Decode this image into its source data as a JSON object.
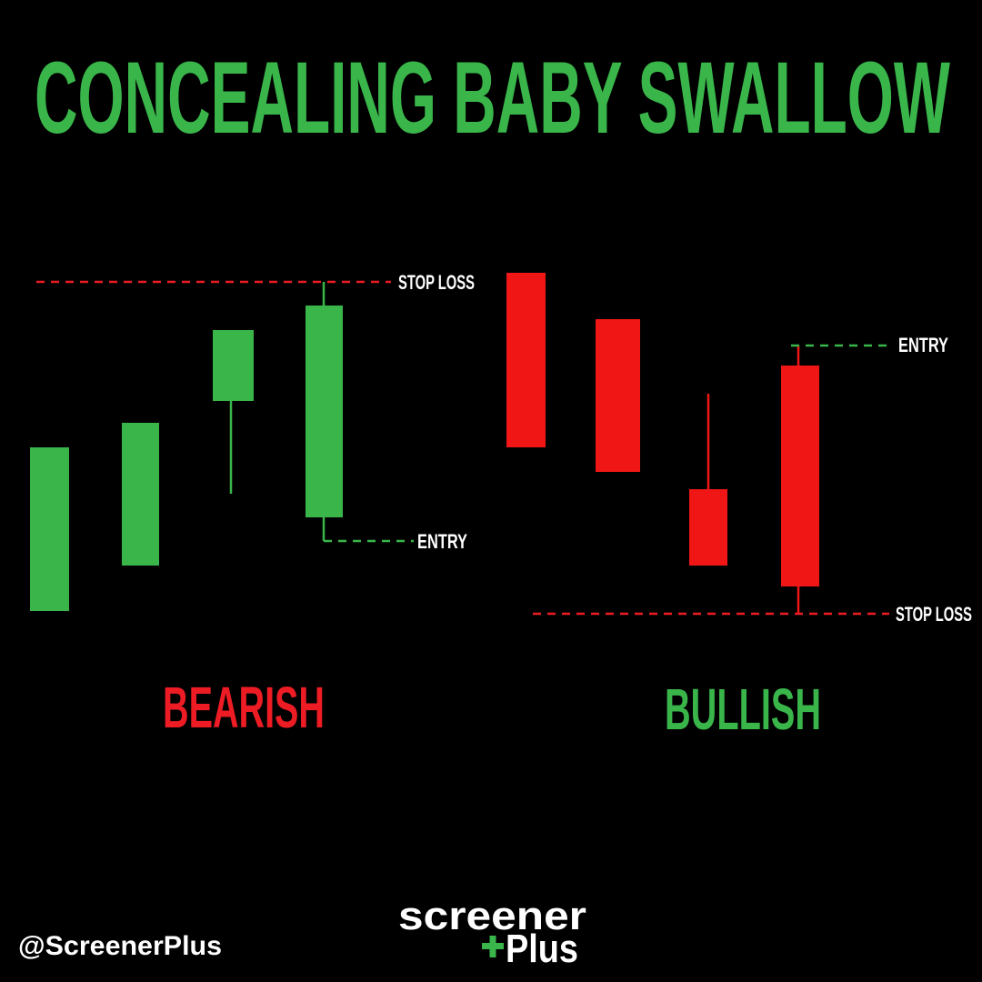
{
  "title": "CONCEALING BABY SWALLOW",
  "panels": [
    {
      "label": "BEARISH",
      "stop_loss": "STOP LOSS",
      "entry": "ENTRY"
    },
    {
      "label": "BULLISH",
      "stop_loss": "STOP LOSS",
      "entry": "ENTRY"
    }
  ],
  "footer": {
    "handle": "@ScreenerPlus",
    "logo_top": "screener",
    "logo_bottom": "Plus"
  }
}
